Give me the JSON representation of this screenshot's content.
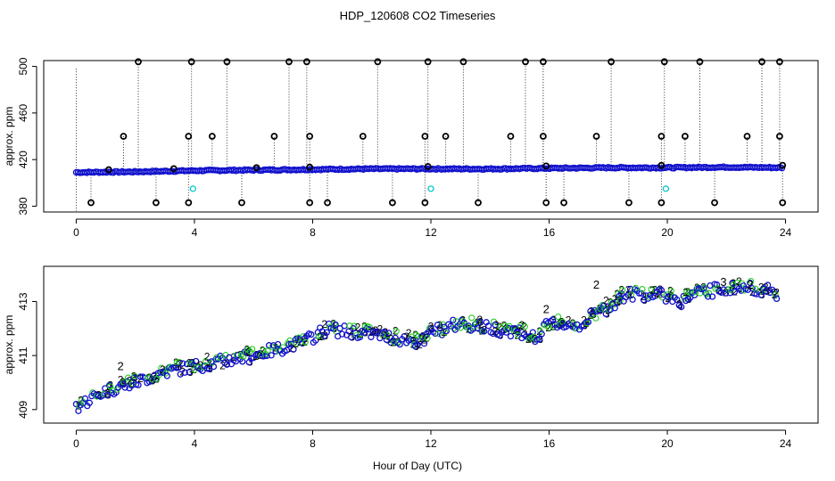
{
  "figure": {
    "title": "HDP_120608  CO2 Timeseries",
    "xlabel": "Hour of Day (UTC)"
  },
  "colors": {
    "outlier": "#000000",
    "series1": "#00c8c8",
    "series2": "#22cc22",
    "series3": "#1010cc",
    "dotted": "#333333"
  },
  "chart_data": [
    {
      "type": "scatter",
      "title": "",
      "ylabel": "approx. ppm",
      "xlim": [
        -1.1,
        25.1
      ],
      "ylim": [
        375,
        505
      ],
      "xticks": [
        0,
        4,
        8,
        12,
        16,
        20,
        24
      ],
      "yticks": [
        380,
        420,
        460,
        500
      ],
      "baseline": {
        "x": [
          0,
          2,
          4,
          6,
          8,
          10,
          12,
          14,
          16,
          18,
          20,
          22,
          24
        ],
        "y": [
          409,
          409.5,
          410.5,
          411,
          411.5,
          412,
          412,
          412,
          412.5,
          413,
          413,
          413.5,
          413
        ]
      },
      "outliers_high": [
        2.1,
        3.9,
        5.1,
        7.2,
        7.8,
        10.2,
        11.9,
        13.1,
        15.2,
        15.8,
        18.1,
        19.9,
        21.1,
        23.2,
        23.8
      ],
      "outliers_mid": [
        1.6,
        3.8,
        4.6,
        6.7,
        7.9,
        9.7,
        11.8,
        12.5,
        14.7,
        15.8,
        17.6,
        19.8,
        20.6,
        22.7,
        23.8
      ],
      "outliers_low": [
        0.5,
        2.7,
        3.8,
        5.6,
        7.9,
        8.5,
        10.7,
        11.8,
        13.6,
        15.9,
        16.5,
        18.7,
        19.8,
        21.6,
        23.9
      ],
      "series1_points": [
        {
          "x": 3.95,
          "y": 395
        },
        {
          "x": 12.0,
          "y": 395
        },
        {
          "x": 19.95,
          "y": 395
        }
      ]
    },
    {
      "type": "scatter",
      "title": "",
      "ylabel": "approx. ppm",
      "xlim": [
        -1.1,
        25.1
      ],
      "ylim": [
        408.5,
        414.3
      ],
      "xticks": [
        0,
        4,
        8,
        12,
        16,
        20,
        24
      ],
      "yticks": [
        409,
        411,
        413
      ],
      "series": [
        {
          "name": "2",
          "marker": "2"
        },
        {
          "name": "3",
          "marker": "3"
        }
      ],
      "trend": {
        "x": [
          0,
          0.5,
          1,
          2,
          3,
          4,
          5,
          6,
          7,
          7.7,
          8.5,
          9,
          10,
          11,
          11.8,
          12,
          12.5,
          13,
          14,
          15,
          15.6,
          16,
          17,
          17.5,
          18,
          18.5,
          19,
          20,
          20.5,
          21,
          22,
          23,
          23.7
        ],
        "y": [
          409.1,
          409.4,
          409.7,
          410.0,
          410.4,
          410.6,
          410.8,
          411.0,
          411.3,
          411.5,
          412.0,
          411.9,
          411.8,
          411.6,
          411.5,
          411.9,
          412.0,
          412.2,
          412.0,
          411.9,
          411.6,
          412.2,
          412.1,
          412.5,
          412.8,
          413.2,
          413.3,
          413.2,
          413.0,
          413.3,
          413.5,
          413.5,
          413.3
        ]
      },
      "annotations_high": [
        {
          "x": 1.5,
          "y": 410.6
        },
        {
          "x": 15.9,
          "y": 412.7
        },
        {
          "x": 17.6,
          "y": 413.6
        },
        {
          "x": 21.9,
          "y": 413.7
        },
        {
          "x": 22.8,
          "y": 413.6
        }
      ]
    }
  ]
}
